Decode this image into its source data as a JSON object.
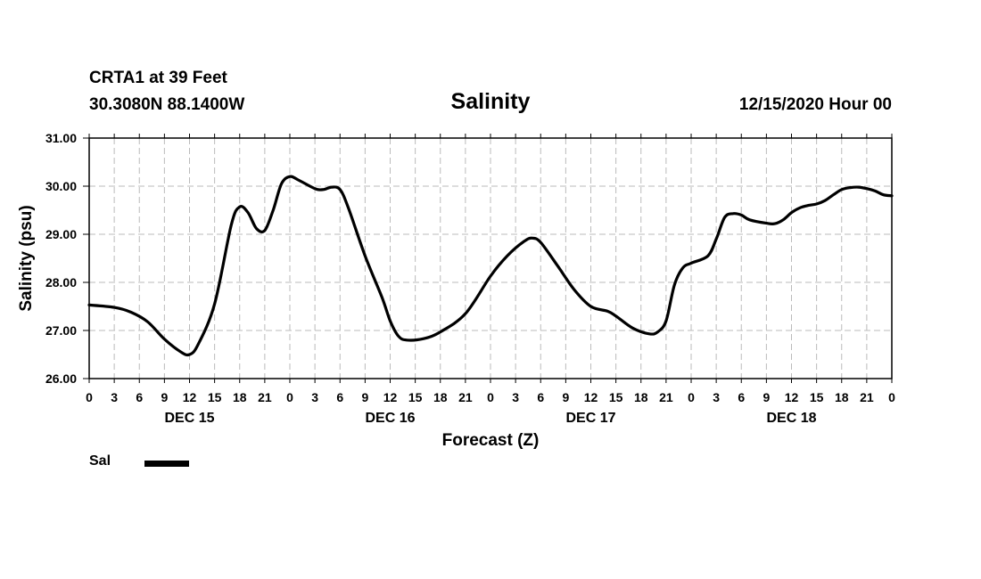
{
  "header": {
    "station": "CRTA1 at 39 Feet",
    "latlon": "30.3080N 88.1400W",
    "title": "Salinity",
    "run": "12/15/2020 Hour 00"
  },
  "legend": {
    "label": "Sal",
    "color": "#000000"
  },
  "chart_data": {
    "type": "line",
    "title": "Salinity",
    "xlabel": "Forecast (Z)",
    "ylabel": "Salinity (psu)",
    "ylim": [
      26.0,
      31.0
    ],
    "xlim_hours": [
      0,
      96
    ],
    "grid": true,
    "legend_placement": "bottom-left",
    "y_ticks": [
      "26.00",
      "27.00",
      "28.00",
      "29.00",
      "30.00",
      "31.00"
    ],
    "x_tick_labels": [
      "0",
      "3",
      "6",
      "9",
      "12",
      "15",
      "18",
      "21",
      "0",
      "3",
      "6",
      "9",
      "12",
      "15",
      "18",
      "21",
      "0",
      "3",
      "6",
      "9",
      "12",
      "15",
      "18",
      "21",
      "0",
      "3",
      "6",
      "9",
      "12",
      "15",
      "18",
      "21",
      "0"
    ],
    "day_labels": [
      {
        "label": "DEC 15",
        "at_hour": 12
      },
      {
        "label": "DEC 16",
        "at_hour": 36
      },
      {
        "label": "DEC 17",
        "at_hour": 60
      },
      {
        "label": "DEC 18",
        "at_hour": 84
      }
    ],
    "series": [
      {
        "name": "Sal",
        "color": "#000000",
        "points": [
          [
            0,
            27.53
          ],
          [
            3,
            27.48
          ],
          [
            5,
            27.38
          ],
          [
            7,
            27.18
          ],
          [
            9,
            26.82
          ],
          [
            11,
            26.55
          ],
          [
            12,
            26.5
          ],
          [
            13,
            26.7
          ],
          [
            15,
            27.55
          ],
          [
            17,
            29.2
          ],
          [
            18,
            29.57
          ],
          [
            19,
            29.45
          ],
          [
            20,
            29.12
          ],
          [
            21,
            29.08
          ],
          [
            22,
            29.5
          ],
          [
            23,
            30.05
          ],
          [
            24,
            30.2
          ],
          [
            25,
            30.13
          ],
          [
            27,
            29.95
          ],
          [
            28,
            29.93
          ],
          [
            29,
            29.98
          ],
          [
            30,
            29.93
          ],
          [
            31,
            29.55
          ],
          [
            33,
            28.55
          ],
          [
            35,
            27.7
          ],
          [
            36,
            27.2
          ],
          [
            37,
            26.88
          ],
          [
            38,
            26.8
          ],
          [
            40,
            26.83
          ],
          [
            42,
            26.97
          ],
          [
            45,
            27.35
          ],
          [
            48,
            28.13
          ],
          [
            50,
            28.55
          ],
          [
            52,
            28.85
          ],
          [
            53,
            28.92
          ],
          [
            54,
            28.83
          ],
          [
            56,
            28.35
          ],
          [
            58,
            27.85
          ],
          [
            60,
            27.5
          ],
          [
            62,
            27.4
          ],
          [
            63,
            27.3
          ],
          [
            65,
            27.05
          ],
          [
            67,
            26.93
          ],
          [
            68,
            26.97
          ],
          [
            69,
            27.2
          ],
          [
            70,
            27.95
          ],
          [
            71,
            28.3
          ],
          [
            72,
            28.4
          ],
          [
            74,
            28.55
          ],
          [
            75,
            28.9
          ],
          [
            76,
            29.35
          ],
          [
            77,
            29.43
          ],
          [
            78,
            29.4
          ],
          [
            79,
            29.3
          ],
          [
            81,
            29.23
          ],
          [
            82,
            29.22
          ],
          [
            83,
            29.3
          ],
          [
            84,
            29.45
          ],
          [
            85,
            29.55
          ],
          [
            86,
            29.6
          ],
          [
            87,
            29.63
          ],
          [
            88,
            29.7
          ],
          [
            89,
            29.82
          ],
          [
            90,
            29.93
          ],
          [
            91,
            29.97
          ],
          [
            92,
            29.98
          ],
          [
            93,
            29.95
          ],
          [
            94,
            29.9
          ],
          [
            95,
            29.82
          ],
          [
            96,
            29.8
          ]
        ]
      }
    ]
  }
}
